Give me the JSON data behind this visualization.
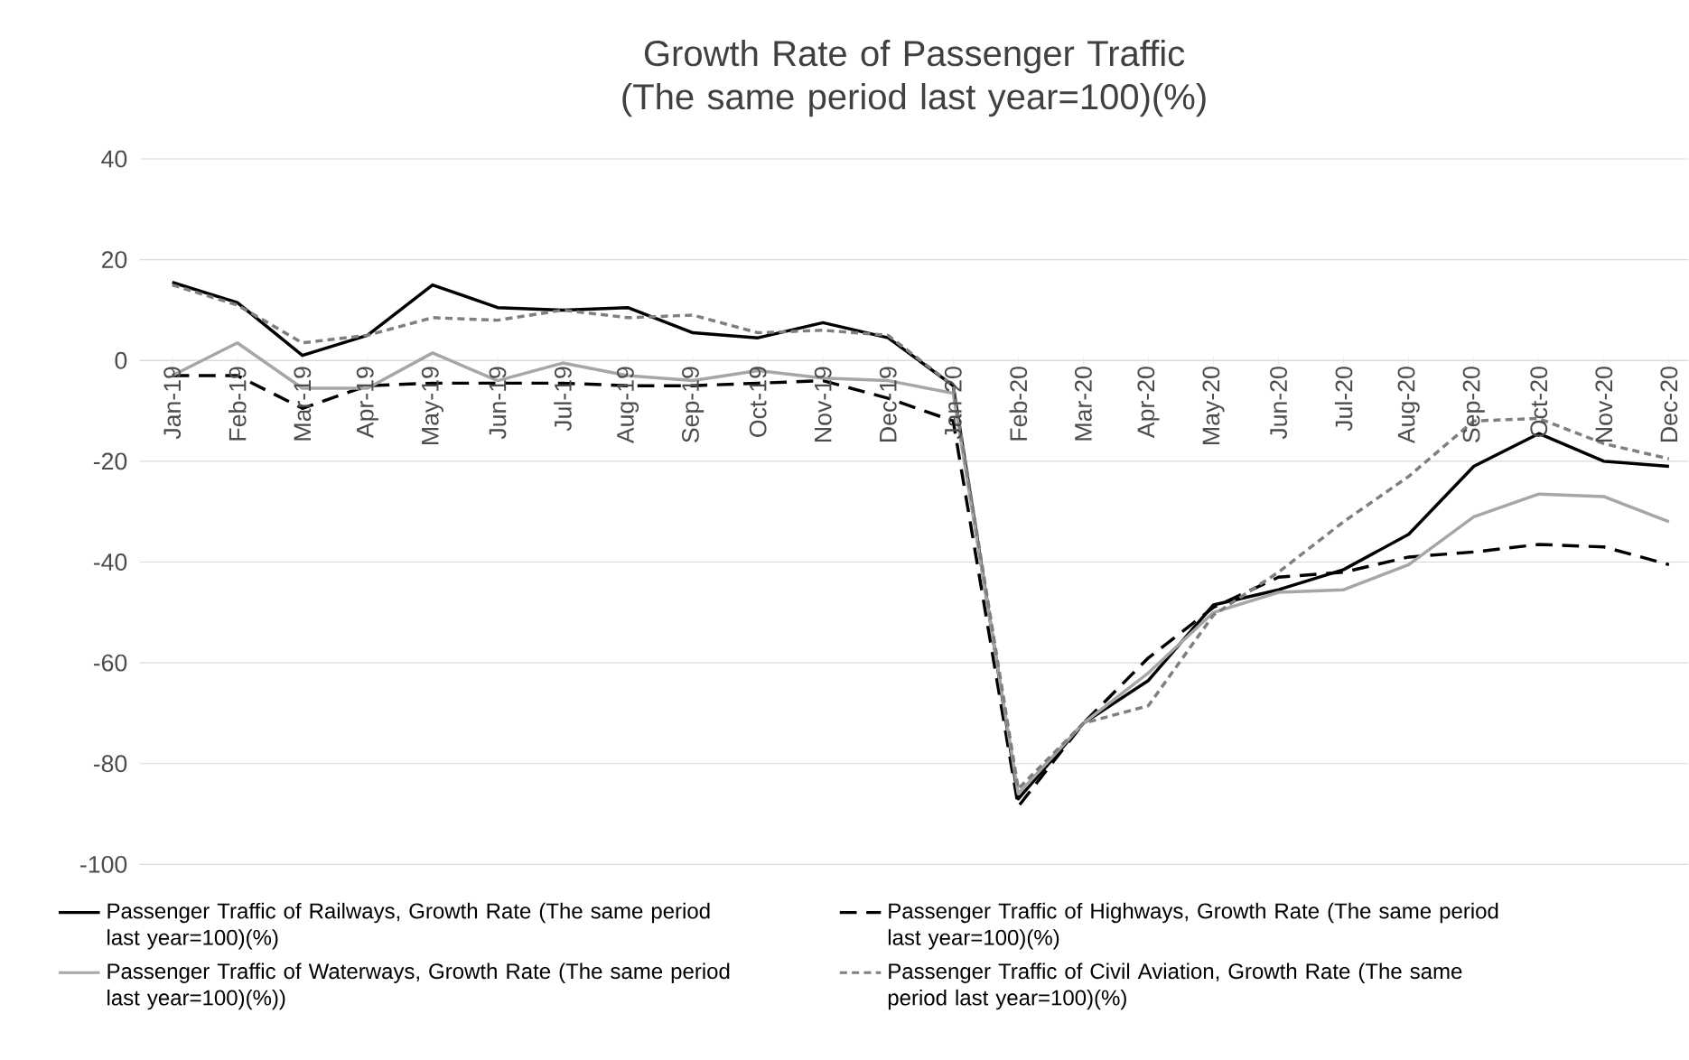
{
  "chart_data": {
    "type": "line",
    "title": "Growth Rate of Passenger Traffic (The same period last year=100)(%)",
    "categories": [
      "Jan-19",
      "Feb-19",
      "Mar-19",
      "Apr-19",
      "May-19",
      "Jun-19",
      "Jul-19",
      "Aug-19",
      "Sep-19",
      "Oct-19",
      "Nov-19",
      "Dec-19",
      "Jan-20",
      "Feb-20",
      "Mar-20",
      "Apr-20",
      "May-20",
      "Jun-20",
      "Jul-20",
      "Aug-20",
      "Sep-20",
      "Oct-20",
      "Nov-20",
      "Dec-20"
    ],
    "series": [
      {
        "name": "Passenger Traffic of Railways, Growth Rate (The same period last year=100)(%)",
        "color": "#000000",
        "line_style": "solid",
        "values": [
          15.5,
          11.5,
          1,
          5,
          15,
          10.5,
          10,
          10.5,
          5.5,
          4.5,
          7.5,
          4.5,
          -5,
          -87,
          -72,
          -63.5,
          -48.5,
          -45.5,
          -41.5,
          -34.5,
          -21,
          -14.5,
          -20,
          -21
        ]
      },
      {
        "name": "Passenger Traffic of Highways, Growth Rate (The same period last year=100)(%)",
        "color": "#000000",
        "line_style": "dashed",
        "values": [
          -3,
          -3,
          -9.5,
          -5,
          -4.5,
          -4.5,
          -4.5,
          -5,
          -5,
          -4.5,
          -4,
          -7.5,
          -12,
          -88.5,
          -72,
          -59,
          -49,
          -43,
          -42,
          -39,
          -38,
          -36.5,
          -37,
          -40.5
        ]
      },
      {
        "name": "Passenger Traffic of Waterways, Growth Rate (The same period last year=100)(%))",
        "color": "#a6a6a6",
        "line_style": "solid",
        "values": [
          -3,
          3.5,
          -5.5,
          -5.5,
          1.5,
          -4,
          -0.5,
          -3,
          -4,
          -2,
          -3.5,
          -4,
          -6.5,
          -86,
          -72,
          -62,
          -50,
          -46,
          -45.5,
          -40.5,
          -31,
          -26.5,
          -27,
          -32
        ]
      },
      {
        "name": "Passenger Traffic of Civil Aviation, Growth Rate (The same period last year=100)(%)",
        "color": "#7f7f7f",
        "line_style": "dotted",
        "values": [
          15,
          11,
          3.5,
          5,
          8.5,
          8,
          10,
          8.5,
          9,
          5.5,
          6,
          5,
          -5,
          -85,
          -72,
          -68.5,
          -50.5,
          -42,
          -32,
          -23,
          -12,
          -11.5,
          -16.5,
          -19.5
        ]
      }
    ],
    "ylim": [
      -100,
      40
    ],
    "yticks": [
      -100,
      -80,
      -60,
      -40,
      -20,
      0,
      20,
      40
    ],
    "grid": "y",
    "legend": "bottom"
  }
}
